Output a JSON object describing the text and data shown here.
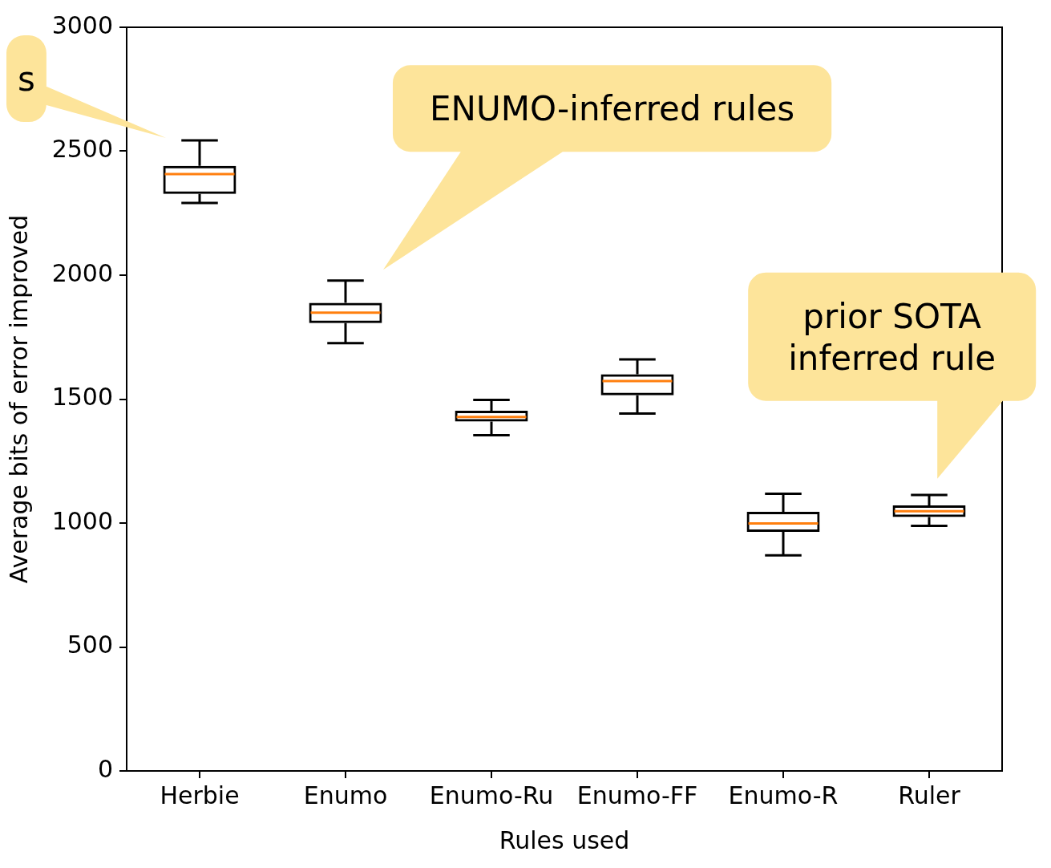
{
  "chart_data": {
    "type": "box",
    "xlabel": "Rules used",
    "ylabel": "Average bits of error improved",
    "categories": [
      "Herbie",
      "Enumo",
      "Enumo-Ru",
      "Enumo-FF",
      "Enumo-R",
      "Ruler"
    ],
    "color": "#000000",
    "boxes": [
      {
        "low": 2291,
        "q1": 2328,
        "median": 2408,
        "q3": 2441,
        "high": 2544
      },
      {
        "low": 1726,
        "q1": 1807,
        "median": 1849,
        "q3": 1888,
        "high": 1978
      },
      {
        "low": 1354,
        "q1": 1409,
        "median": 1428,
        "q3": 1453,
        "high": 1497
      },
      {
        "low": 1442,
        "q1": 1515,
        "median": 1573,
        "q3": 1600,
        "high": 1660
      },
      {
        "low": 870,
        "q1": 964,
        "median": 998,
        "q3": 1045,
        "high": 1118
      },
      {
        "low": 989,
        "q1": 1024,
        "median": 1048,
        "q3": 1071,
        "high": 1113
      }
    ],
    "ylim": [
      0,
      3000
    ],
    "yticks": [
      0,
      500,
      1000,
      1500,
      2000,
      2500,
      3000
    ],
    "grid": false,
    "annotations": [
      "s",
      "ENUMO-inferred rules",
      "prior SOTA inferred rule"
    ]
  }
}
